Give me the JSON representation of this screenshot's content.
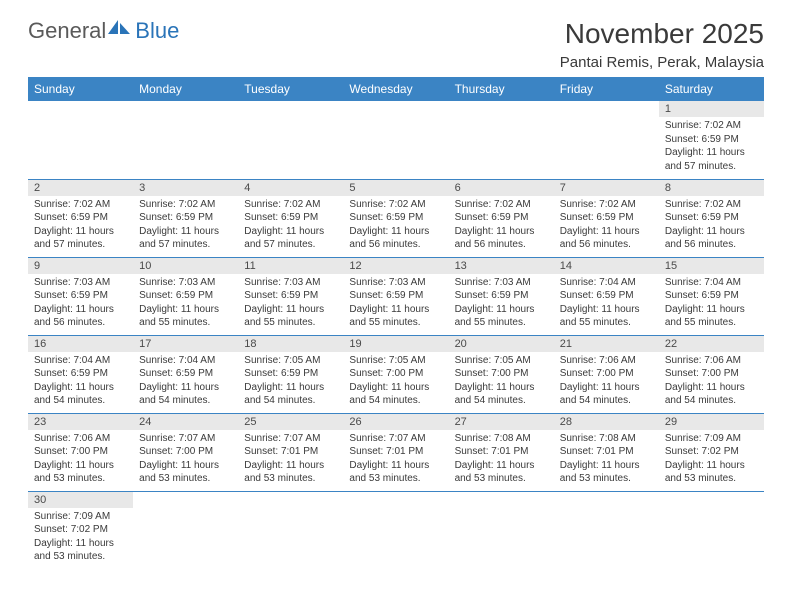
{
  "logo": {
    "word1": "General",
    "word2": "Blue",
    "icon_color": "#2a74b8"
  },
  "title": "November 2025",
  "location": "Pantai Remis, Perak, Malaysia",
  "colors": {
    "header_bg": "#3b84c4",
    "header_fg": "#ffffff",
    "daynum_bg": "#e8e8e8",
    "border": "#3b84c4",
    "text": "#3a3a3a"
  },
  "weekdays": [
    "Sunday",
    "Monday",
    "Tuesday",
    "Wednesday",
    "Thursday",
    "Friday",
    "Saturday"
  ],
  "first_weekday_index": 6,
  "days": [
    {
      "n": 1,
      "sr": "7:02 AM",
      "ss": "6:59 PM",
      "dl": "11 hours and 57 minutes."
    },
    {
      "n": 2,
      "sr": "7:02 AM",
      "ss": "6:59 PM",
      "dl": "11 hours and 57 minutes."
    },
    {
      "n": 3,
      "sr": "7:02 AM",
      "ss": "6:59 PM",
      "dl": "11 hours and 57 minutes."
    },
    {
      "n": 4,
      "sr": "7:02 AM",
      "ss": "6:59 PM",
      "dl": "11 hours and 57 minutes."
    },
    {
      "n": 5,
      "sr": "7:02 AM",
      "ss": "6:59 PM",
      "dl": "11 hours and 56 minutes."
    },
    {
      "n": 6,
      "sr": "7:02 AM",
      "ss": "6:59 PM",
      "dl": "11 hours and 56 minutes."
    },
    {
      "n": 7,
      "sr": "7:02 AM",
      "ss": "6:59 PM",
      "dl": "11 hours and 56 minutes."
    },
    {
      "n": 8,
      "sr": "7:02 AM",
      "ss": "6:59 PM",
      "dl": "11 hours and 56 minutes."
    },
    {
      "n": 9,
      "sr": "7:03 AM",
      "ss": "6:59 PM",
      "dl": "11 hours and 56 minutes."
    },
    {
      "n": 10,
      "sr": "7:03 AM",
      "ss": "6:59 PM",
      "dl": "11 hours and 55 minutes."
    },
    {
      "n": 11,
      "sr": "7:03 AM",
      "ss": "6:59 PM",
      "dl": "11 hours and 55 minutes."
    },
    {
      "n": 12,
      "sr": "7:03 AM",
      "ss": "6:59 PM",
      "dl": "11 hours and 55 minutes."
    },
    {
      "n": 13,
      "sr": "7:03 AM",
      "ss": "6:59 PM",
      "dl": "11 hours and 55 minutes."
    },
    {
      "n": 14,
      "sr": "7:04 AM",
      "ss": "6:59 PM",
      "dl": "11 hours and 55 minutes."
    },
    {
      "n": 15,
      "sr": "7:04 AM",
      "ss": "6:59 PM",
      "dl": "11 hours and 55 minutes."
    },
    {
      "n": 16,
      "sr": "7:04 AM",
      "ss": "6:59 PM",
      "dl": "11 hours and 54 minutes."
    },
    {
      "n": 17,
      "sr": "7:04 AM",
      "ss": "6:59 PM",
      "dl": "11 hours and 54 minutes."
    },
    {
      "n": 18,
      "sr": "7:05 AM",
      "ss": "6:59 PM",
      "dl": "11 hours and 54 minutes."
    },
    {
      "n": 19,
      "sr": "7:05 AM",
      "ss": "7:00 PM",
      "dl": "11 hours and 54 minutes."
    },
    {
      "n": 20,
      "sr": "7:05 AM",
      "ss": "7:00 PM",
      "dl": "11 hours and 54 minutes."
    },
    {
      "n": 21,
      "sr": "7:06 AM",
      "ss": "7:00 PM",
      "dl": "11 hours and 54 minutes."
    },
    {
      "n": 22,
      "sr": "7:06 AM",
      "ss": "7:00 PM",
      "dl": "11 hours and 54 minutes."
    },
    {
      "n": 23,
      "sr": "7:06 AM",
      "ss": "7:00 PM",
      "dl": "11 hours and 53 minutes."
    },
    {
      "n": 24,
      "sr": "7:07 AM",
      "ss": "7:00 PM",
      "dl": "11 hours and 53 minutes."
    },
    {
      "n": 25,
      "sr": "7:07 AM",
      "ss": "7:01 PM",
      "dl": "11 hours and 53 minutes."
    },
    {
      "n": 26,
      "sr": "7:07 AM",
      "ss": "7:01 PM",
      "dl": "11 hours and 53 minutes."
    },
    {
      "n": 27,
      "sr": "7:08 AM",
      "ss": "7:01 PM",
      "dl": "11 hours and 53 minutes."
    },
    {
      "n": 28,
      "sr": "7:08 AM",
      "ss": "7:01 PM",
      "dl": "11 hours and 53 minutes."
    },
    {
      "n": 29,
      "sr": "7:09 AM",
      "ss": "7:02 PM",
      "dl": "11 hours and 53 minutes."
    },
    {
      "n": 30,
      "sr": "7:09 AM",
      "ss": "7:02 PM",
      "dl": "11 hours and 53 minutes."
    }
  ],
  "labels": {
    "sunrise": "Sunrise:",
    "sunset": "Sunset:",
    "daylight": "Daylight:"
  }
}
